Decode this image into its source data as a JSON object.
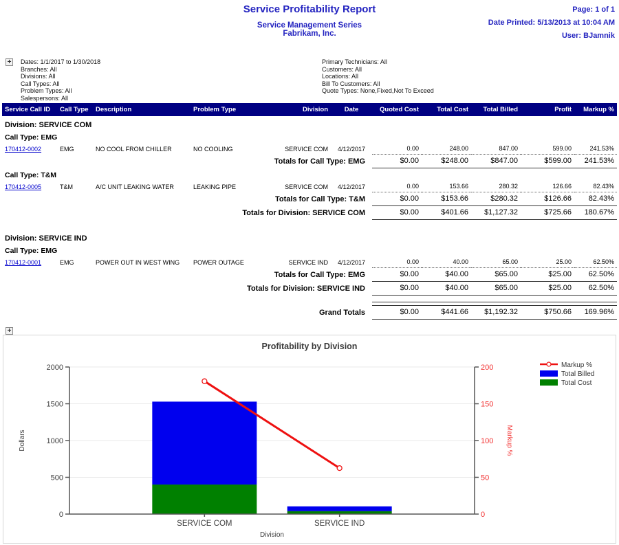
{
  "header": {
    "title": "Service Profitability Report",
    "subtitle1": "Service Management Series",
    "subtitle2": "Fabrikam, Inc.",
    "page": "Page: 1 of 1",
    "date_printed": "Date Printed: 5/13/2013 at 10:04 AM",
    "user": "User: BJamnik"
  },
  "icons": {
    "expand_plus": "+"
  },
  "filters": {
    "left": [
      "Dates: 1/1/2017 to 1/30/2018",
      "Branches: All",
      "Divisions: All",
      "Call Types: All",
      "Problem Types: All",
      "Salespersons: All"
    ],
    "right": [
      "Primary Technicians: All",
      "Customers: All",
      "Locations: All",
      "Bill To Customers: All",
      "Quote Types: None,Fixed,Not To Exceed"
    ]
  },
  "table": {
    "columns": [
      "Service Call ID",
      "Call Type",
      "Description",
      "Problem Type",
      "Division",
      "Date",
      "Quoted Cost",
      "Total Cost",
      "Total Billed",
      "Profit",
      "Markup %"
    ],
    "groups": [
      {
        "division": "Division: SERVICE COM",
        "call_type_groups": [
          {
            "label": "Call Type: EMG",
            "rows": [
              {
                "call_id": "170412-0002",
                "call_type": "EMG",
                "description": "NO COOL FROM CHILLER",
                "problem_type": "NO COOLING",
                "division": "SERVICE COM",
                "date": "4/12/2017",
                "quoted": "0.00",
                "cost": "248.00",
                "billed": "847.00",
                "profit": "599.00",
                "markup": "241.53%"
              }
            ],
            "totals": {
              "label": "Totals for Call Type: EMG",
              "quoted": "$0.00",
              "cost": "$248.00",
              "billed": "$847.00",
              "profit": "$599.00",
              "markup": "241.53%"
            }
          },
          {
            "label": "Call Type: T&M",
            "rows": [
              {
                "call_id": "170412-0005",
                "call_type": "T&M",
                "description": "A/C UNIT LEAKING WATER",
                "problem_type": "LEAKING PIPE",
                "division": "SERVICE COM",
                "date": "4/12/2017",
                "quoted": "0.00",
                "cost": "153.66",
                "billed": "280.32",
                "profit": "126.66",
                "markup": "82.43%"
              }
            ],
            "totals": {
              "label": "Totals for Call Type: T&M",
              "quoted": "$0.00",
              "cost": "$153.66",
              "billed": "$280.32",
              "profit": "$126.66",
              "markup": "82.43%"
            }
          }
        ],
        "division_totals": {
          "label": "Totals for Division: SERVICE COM",
          "quoted": "$0.00",
          "cost": "$401.66",
          "billed": "$1,127.32",
          "profit": "$725.66",
          "markup": "180.67%"
        }
      },
      {
        "division": "Division: SERVICE IND",
        "call_type_groups": [
          {
            "label": "Call Type: EMG",
            "rows": [
              {
                "call_id": "170412-0001",
                "call_type": "EMG",
                "description": "POWER OUT IN WEST WING",
                "problem_type": "POWER OUTAGE",
                "division": "SERVICE IND",
                "date": "4/12/2017",
                "quoted": "0.00",
                "cost": "40.00",
                "billed": "65.00",
                "profit": "25.00",
                "markup": "62.50%"
              }
            ],
            "totals": {
              "label": "Totals for Call Type: EMG",
              "quoted": "$0.00",
              "cost": "$40.00",
              "billed": "$65.00",
              "profit": "$25.00",
              "markup": "62.50%"
            }
          }
        ],
        "division_totals": {
          "label": "Totals for Division: SERVICE IND",
          "quoted": "$0.00",
          "cost": "$40.00",
          "billed": "$65.00",
          "profit": "$25.00",
          "markup": "62.50%"
        }
      }
    ],
    "grand_totals": {
      "label": "Grand Totals",
      "quoted": "$0.00",
      "cost": "$441.66",
      "billed": "$1,192.32",
      "profit": "$750.66",
      "markup": "169.96%"
    }
  },
  "chart_data": {
    "type": "bar",
    "title": "Profitability by Division",
    "categories": [
      "SERVICE COM",
      "SERVICE IND"
    ],
    "series": [
      {
        "name": "Total Cost",
        "type": "bar",
        "stacked": true,
        "color": "#008000",
        "values": [
          401.66,
          40.0
        ]
      },
      {
        "name": "Total Billed",
        "type": "bar",
        "stacked": true,
        "color": "#0000ee",
        "values": [
          1127.32,
          65.0
        ]
      },
      {
        "name": "Markup %",
        "type": "line",
        "axis": "right",
        "color": "#ee1111",
        "values": [
          180.67,
          62.5
        ]
      }
    ],
    "xlabel": "Division",
    "ylabel_left": "Dollars",
    "ylabel_right": "Markup %",
    "ylim_left": [
      0,
      2000
    ],
    "ylim_right": [
      0,
      200
    ],
    "yticks_left": [
      0,
      500,
      1000,
      1500,
      2000
    ],
    "yticks_right": [
      0,
      50,
      100,
      150,
      200
    ],
    "grid": true,
    "legend": [
      "Markup %",
      "Total Billed",
      "Total Cost"
    ],
    "legend_position": "top-right"
  }
}
